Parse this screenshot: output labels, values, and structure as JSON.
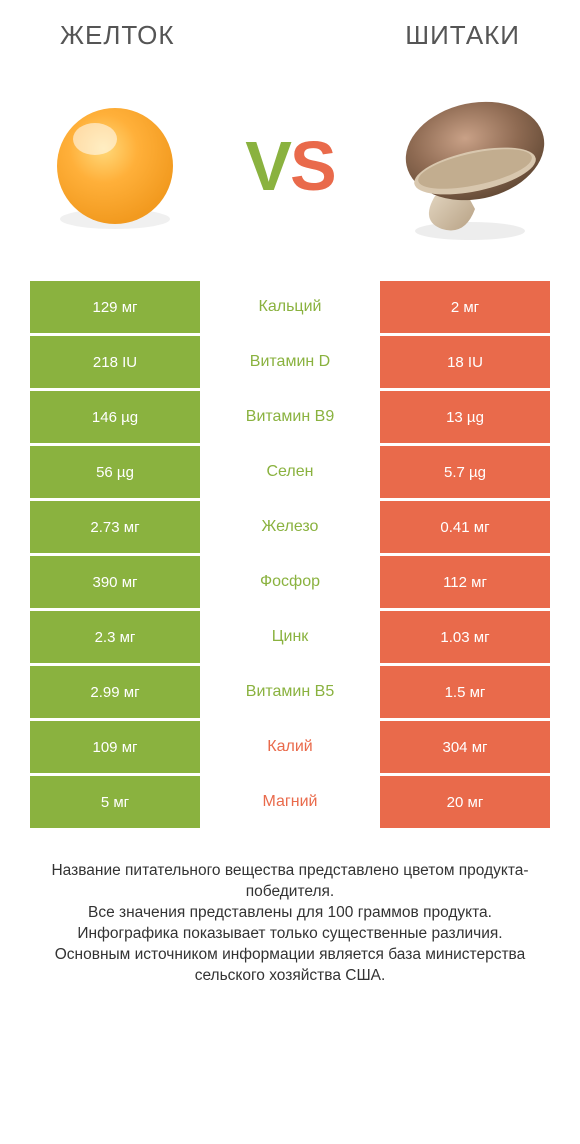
{
  "header": {
    "left_title": "ЖЕЛТОК",
    "right_title": "ШИТАКИ"
  },
  "vs": {
    "v": "V",
    "s": "S"
  },
  "colors": {
    "green": "#8ab23f",
    "orange": "#e96a4b",
    "mid_green_text": "#8ab23f",
    "mid_orange_text": "#e96a4b"
  },
  "rows": [
    {
      "left": "129 мг",
      "mid": "Кальций",
      "right": "2 мг",
      "winner": "left"
    },
    {
      "left": "218 IU",
      "mid": "Витамин D",
      "right": "18 IU",
      "winner": "left"
    },
    {
      "left": "146 µg",
      "mid": "Витамин B9",
      "right": "13 µg",
      "winner": "left"
    },
    {
      "left": "56 µg",
      "mid": "Селен",
      "right": "5.7 µg",
      "winner": "left"
    },
    {
      "left": "2.73 мг",
      "mid": "Железо",
      "right": "0.41 мг",
      "winner": "left"
    },
    {
      "left": "390 мг",
      "mid": "Фосфор",
      "right": "112 мг",
      "winner": "left"
    },
    {
      "left": "2.3 мг",
      "mid": "Цинк",
      "right": "1.03 мг",
      "winner": "left"
    },
    {
      "left": "2.99 мг",
      "mid": "Витамин B5",
      "right": "1.5 мг",
      "winner": "left"
    },
    {
      "left": "109 мг",
      "mid": "Калий",
      "right": "304 мг",
      "winner": "right"
    },
    {
      "left": "5 мг",
      "mid": "Магний",
      "right": "20 мг",
      "winner": "right"
    }
  ],
  "footnote": "Название питательного вещества представлено цветом продукта-победителя.\nВсе значения представлены для 100 граммов продукта.\nИнфографика показывает только существенные различия.\nОсновным источником информации является база министерства сельского хозяйства США."
}
